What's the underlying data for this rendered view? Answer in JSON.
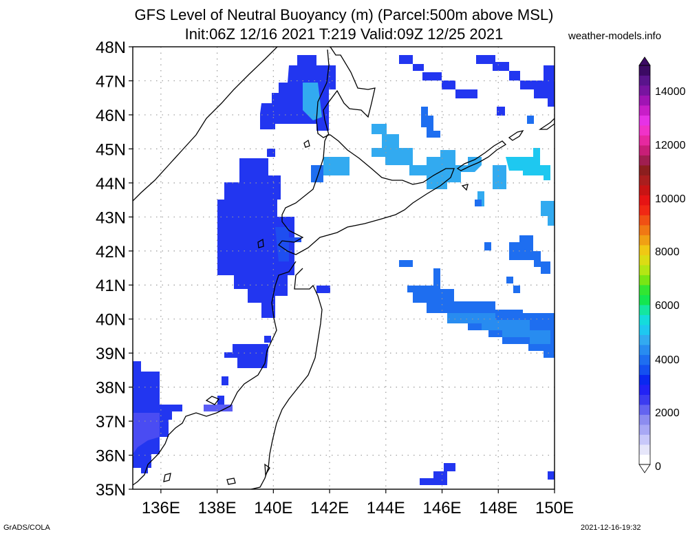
{
  "title_line1": "GFS Level of Neutral Buoyancy (m) (Parcel:500m above MSL)",
  "title_line2": "Init:06Z 12/16 2021 T:219 Valid:09Z 12/25 2021",
  "site": "weather-models.info",
  "footer_left": "GrADS/COLA",
  "footer_right": "2021-12-16-19:32",
  "map": {
    "lon_range": [
      135,
      150
    ],
    "lat_range": [
      35,
      48
    ],
    "lat_ticks": [
      "35N",
      "36N",
      "37N",
      "38N",
      "39N",
      "40N",
      "41N",
      "42N",
      "43N",
      "44N",
      "45N",
      "46N",
      "47N",
      "48N"
    ],
    "lon_ticks": [
      "136E",
      "138E",
      "140E",
      "142E",
      "144E",
      "146E",
      "148E",
      "150E"
    ]
  },
  "colorbar": {
    "labels": [
      "0",
      "2000",
      "4000",
      "6000",
      "8000",
      "10000",
      "12000",
      "14000"
    ],
    "colors": [
      "#ffffff",
      "#e6e6fa",
      "#c8c8fa",
      "#a8a8f5",
      "#8c8cf0",
      "#6464f0",
      "#3c3cf0",
      "#2222f5",
      "#0a28f0",
      "#1450f0",
      "#1e6ef0",
      "#288cf0",
      "#32aaf0",
      "#1ec8f0",
      "#14dcdc",
      "#14e6a0",
      "#14e650",
      "#32e632",
      "#78e614",
      "#b4e614",
      "#dcdc14",
      "#f0c814",
      "#f0a014",
      "#f07814",
      "#f05014",
      "#f02814",
      "#e61414",
      "#c81414",
      "#aa1e1e",
      "#8c1e1e",
      "#a01e50",
      "#c81e78",
      "#e628a0",
      "#f032c8",
      "#e632e6",
      "#c81ec8",
      "#a014b4",
      "#7814a0",
      "#5a148c",
      "#3c0a64"
    ]
  }
}
